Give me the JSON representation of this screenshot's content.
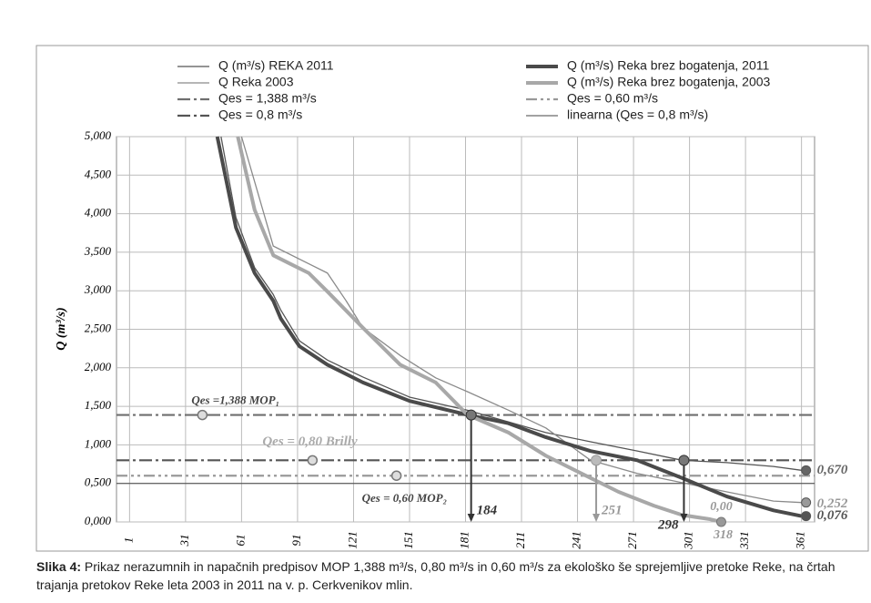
{
  "chart_data": {
    "type": "line",
    "y_label": "Q (m³/s)",
    "xlim": [
      -6,
      368
    ],
    "ylim": [
      0,
      5
    ],
    "xticks": [
      1,
      31,
      61,
      91,
      121,
      151,
      181,
      211,
      241,
      271,
      301,
      331,
      361
    ],
    "yticks": [
      {
        "value": 0,
        "label": "0,000"
      },
      {
        "value": 0.5,
        "label": "0,500"
      },
      {
        "value": 1,
        "label": "1,000"
      },
      {
        "value": 1.5,
        "label": "1,500"
      },
      {
        "value": 2,
        "label": "2,000"
      },
      {
        "value": 2.5,
        "label": "2,500"
      },
      {
        "value": 3,
        "label": "3,000"
      },
      {
        "value": 3.5,
        "label": "3,500"
      },
      {
        "value": 4,
        "label": "4,000"
      },
      {
        "value": 4.5,
        "label": "4,500"
      },
      {
        "value": 5,
        "label": "5,000"
      }
    ],
    "grid": true,
    "series": [
      {
        "name": "Q (m³/s) REKA 2011",
        "color": "#555555",
        "width": 1.3,
        "x": [
          50,
          58,
          68,
          78,
          82,
          92,
          107,
          126,
          151,
          182,
          224,
          248,
          273,
          297,
          321,
          346,
          361
        ],
        "values": [
          5,
          3.95,
          3.3,
          2.95,
          2.75,
          2.35,
          2.1,
          1.88,
          1.62,
          1.45,
          1.16,
          1.04,
          0.92,
          0.8,
          0.77,
          0.72,
          0.67
        ]
      },
      {
        "name": "Q Reka 2003",
        "color": "#8a8a8a",
        "width": 1.3,
        "x": [
          61,
          78,
          97,
          107,
          117,
          126,
          146,
          165,
          182,
          204,
          224,
          248,
          273,
          297,
          321,
          346,
          361
        ],
        "values": [
          5,
          3.58,
          3.35,
          3.23,
          2.87,
          2.52,
          2.16,
          1.87,
          1.69,
          1.45,
          1.22,
          0.8,
          0.63,
          0.51,
          0.39,
          0.27,
          0.252
        ]
      },
      {
        "name": "Q (m³/s) Reka brez bogatenja, 2011",
        "color": "#4a4a4a",
        "width": 4,
        "x": [
          48,
          58,
          68,
          78,
          82,
          92,
          107,
          126,
          151,
          182,
          204,
          224,
          248,
          273,
          297,
          321,
          346,
          361
        ],
        "values": [
          5,
          3.82,
          3.23,
          2.87,
          2.64,
          2.28,
          2.04,
          1.81,
          1.57,
          1.39,
          1.28,
          1.1,
          0.92,
          0.8,
          0.57,
          0.33,
          0.15,
          0.076
        ]
      },
      {
        "name": "Q (m³/s) Reka brez bogatenja, 2003",
        "color": "#a8a8a8",
        "width": 4,
        "x": [
          59,
          68,
          78,
          87,
          97,
          107,
          126,
          146,
          165,
          182,
          204,
          224,
          243,
          263,
          282,
          297,
          312,
          318
        ],
        "values": [
          5,
          4.05,
          3.46,
          3.35,
          3.23,
          2.99,
          2.52,
          2.04,
          1.81,
          1.39,
          1.16,
          0.86,
          0.63,
          0.39,
          0.21,
          0.09,
          0.035,
          0
        ]
      }
    ],
    "hlines": [
      {
        "name": "Qes = 1,388 m³/s",
        "value": 1.388,
        "color": "#6f6f6f",
        "dash": "dash-dot",
        "note": "Qes =1,388 MOP₁",
        "note_day": 40
      },
      {
        "name": "Qes = 0,8 m³/s",
        "value": 0.8,
        "color": "#555555",
        "dash": "dash-dot",
        "note": "Qes = 0,80 Brilly",
        "note_day": 99
      },
      {
        "name": "Qes = 0,60 m³/s",
        "value": 0.6,
        "color": "#999999",
        "dash": "dash-dot-dot",
        "note": "Qes = 0,60 MOP₂",
        "note_day": 144
      },
      {
        "name": "linearna (Qes = 0,8 m³/s)",
        "value": 0.5,
        "color": "#444444",
        "dash": "solid"
      }
    ],
    "drops": [
      {
        "x": 184,
        "y": 1.388,
        "color": "#333333"
      },
      {
        "x": 251,
        "y": 0.8,
        "color": "#999999"
      },
      {
        "x": 298,
        "y": 0.8,
        "color": "#333333"
      }
    ],
    "zero_point": {
      "x": 318,
      "y": {
        "value": 0,
        "label": "0,00"
      }
    },
    "end_values": [
      {
        "value": 0.67,
        "label": "0,670",
        "color": "#666666"
      },
      {
        "value": 0.252,
        "label": "0,252",
        "color": "#999999"
      },
      {
        "value": 0.076,
        "label": "0,076",
        "color": "#555555"
      }
    ]
  },
  "caption": {
    "label": "Slika 4:",
    "text": "Prikaz nerazumnih in napačnih predpisov MOP 1,388 m³/s, 0,80 m³/s in 0,60 m³/s za ekološko še sprejemljive pretoke Reke, na črtah trajanja pretokov Reke leta 2003 in 2011 na v. p. Cerkvenikov mlin."
  }
}
